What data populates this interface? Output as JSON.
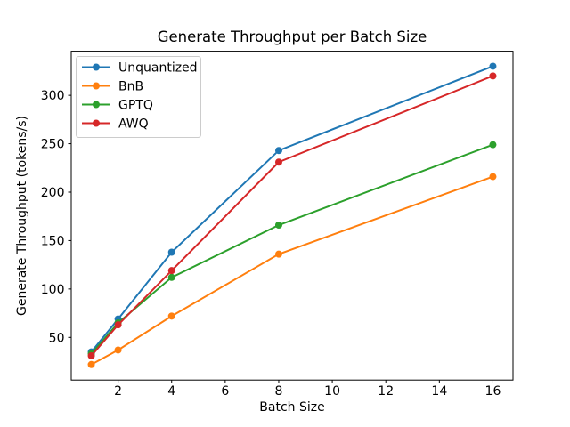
{
  "chart_data": {
    "type": "line",
    "title": "Generate Throughput per Batch Size",
    "xlabel": "Batch Size",
    "ylabel": "Generate Throughput (tokens/s)",
    "x": [
      1,
      2,
      4,
      8,
      16
    ],
    "series": [
      {
        "name": "Unquantized",
        "color": "#1f77b4",
        "values": [
          35,
          69,
          138,
          243,
          330
        ]
      },
      {
        "name": "BnB",
        "color": "#ff7f0e",
        "values": [
          22,
          37,
          72,
          136,
          216
        ]
      },
      {
        "name": "GPTQ",
        "color": "#2ca02c",
        "values": [
          33,
          65,
          112,
          166,
          249
        ]
      },
      {
        "name": "AWQ",
        "color": "#d62728",
        "values": [
          31,
          63,
          119,
          231,
          320
        ]
      }
    ],
    "xlim": [
      0.25,
      16.75
    ],
    "ylim": [
      6,
      345.5
    ],
    "xticks": [
      2,
      4,
      6,
      8,
      10,
      12,
      14,
      16
    ],
    "yticks": [
      50,
      100,
      150,
      200,
      250,
      300
    ],
    "grid": false,
    "legend_position": "upper left",
    "marker": "o",
    "colors": {
      "spine": "#000000",
      "legend_border": "#cccccc",
      "background": "#ffffff"
    }
  }
}
